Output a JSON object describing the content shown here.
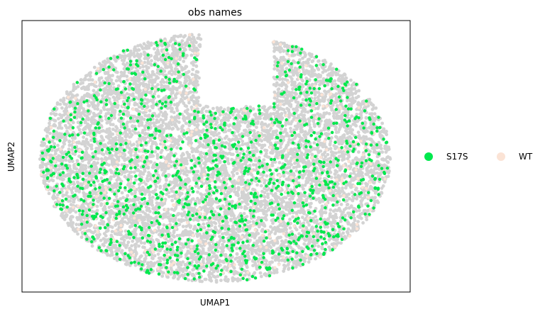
{
  "chart_data": {
    "type": "scatter",
    "title": "obs names",
    "xlabel": "UMAP1",
    "ylabel": "UMAP2",
    "xticks": [],
    "yticks": [],
    "grid": false,
    "legend_position": "right",
    "background_points": {
      "color": "#d3d3d3",
      "description_count": 9000,
      "region": "kidney-shaped cloud with notch at top right"
    },
    "series": [
      {
        "name": "S17S",
        "color": "#00e84d",
        "density": 0.6
      },
      {
        "name": "WT",
        "color": "#fbe3d5",
        "density": 0.3
      }
    ],
    "xlim": [
      0,
      100
    ],
    "ylim": [
      0,
      100
    ]
  }
}
